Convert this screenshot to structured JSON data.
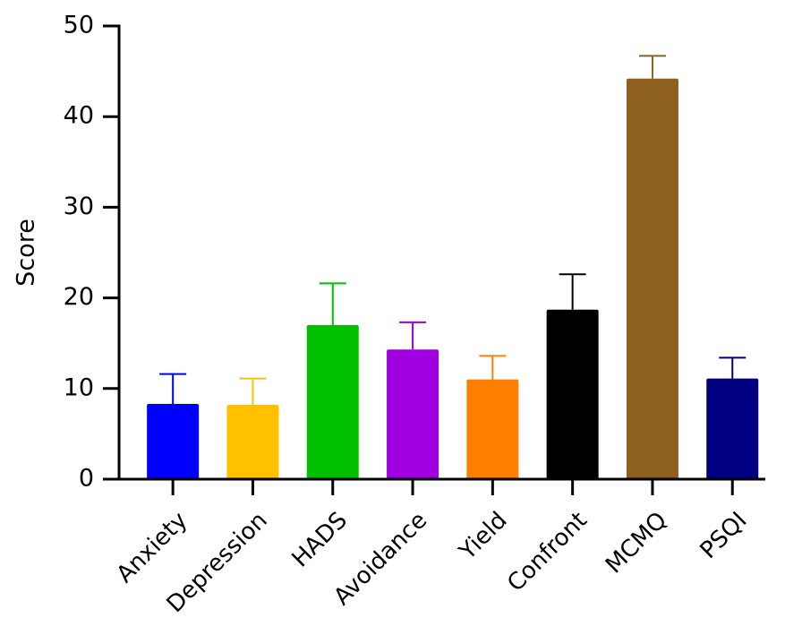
{
  "chart_data": {
    "type": "bar",
    "y_label": "Score",
    "categories": [
      "Anxiety",
      "Depression",
      "HADS",
      "Avoidance",
      "Yield",
      "Confront",
      "MCMQ",
      "PSQI"
    ],
    "values": [
      8.3,
      8.2,
      17.0,
      14.3,
      11.0,
      18.7,
      44.2,
      11.1
    ],
    "errors": [
      3.3,
      2.9,
      4.6,
      3.0,
      2.6,
      3.9,
      2.5,
      2.3
    ],
    "colors": [
      "#0000ff",
      "#ffc000",
      "#00c000",
      "#a000e0",
      "#ff8000",
      "#000000",
      "#8e6020",
      "#000080"
    ],
    "ylim": [
      0,
      50
    ],
    "yticks": [
      0,
      10,
      20,
      30,
      40,
      50
    ],
    "grid": false
  }
}
